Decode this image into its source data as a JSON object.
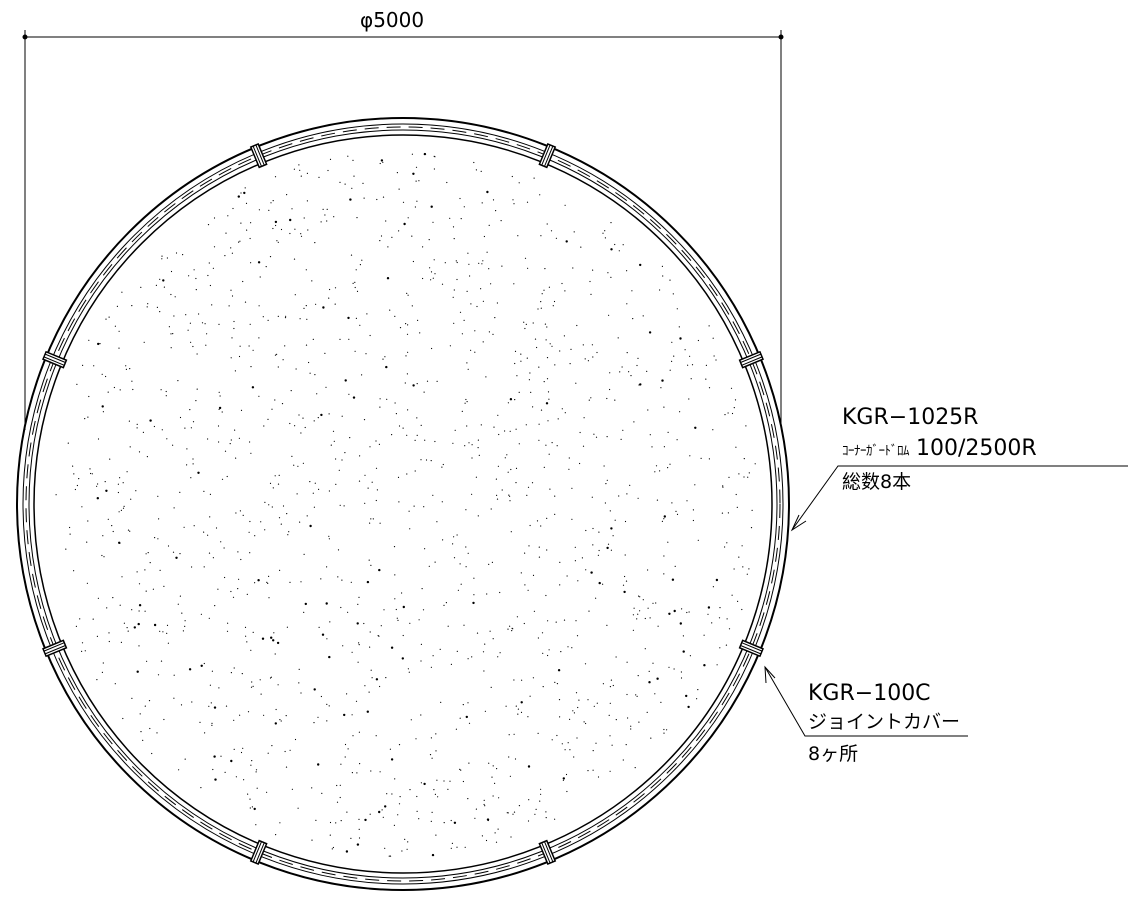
{
  "dimension": {
    "label": "φ5000"
  },
  "callout_guard": {
    "part_no": "KGR−1025R",
    "product_name": "ｺｰﾅｰｶﾞｰﾄﾞﾛﾑ",
    "spec": "100/2500R",
    "quantity": "総数8本"
  },
  "callout_cover": {
    "part_no": "KGR−100C",
    "product_name": "ジョイントカバー",
    "quantity": "8ヶ所"
  },
  "colors": {
    "line": "#000000",
    "background": "#ffffff"
  }
}
